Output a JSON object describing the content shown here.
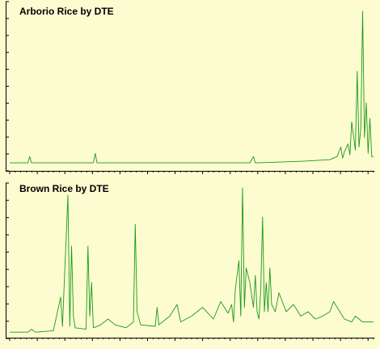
{
  "chart_data": [
    {
      "type": "line",
      "title": "Arborio Rice by DTE",
      "xlabel": "",
      "ylabel": "",
      "xlim": [
        0,
        100
      ],
      "ylim": [
        0,
        100
      ],
      "grid": false,
      "series": [
        {
          "color": "#1a9a1a",
          "x": [
            0,
            5,
            5.5,
            6,
            15,
            23,
            23.5,
            24,
            40,
            52,
            60,
            66,
            67,
            67.5,
            68,
            80,
            88,
            90,
            91,
            91.5,
            92,
            93,
            93.5,
            94,
            95,
            95.5,
            96,
            96.5,
            97,
            97.5,
            98,
            98.5,
            99,
            99.5,
            100
          ],
          "y": [
            2,
            2,
            6,
            2,
            2,
            2,
            8,
            2,
            2,
            2,
            2,
            2,
            6,
            2,
            2,
            3,
            4,
            6,
            12,
            5,
            9,
            14,
            7,
            28,
            10,
            60,
            12,
            24,
            98,
            18,
            40,
            8,
            30,
            6,
            6
          ]
        }
      ]
    },
    {
      "type": "line",
      "title": "Brown Rice by DTE",
      "xlabel": "",
      "ylabel": "",
      "xlim": [
        0,
        100
      ],
      "ylim": [
        0,
        100
      ],
      "grid": false,
      "series": [
        {
          "color": "#1a9a1a",
          "x": [
            0,
            5,
            6,
            7,
            12,
            14,
            14.5,
            15,
            16,
            16.5,
            17,
            17.5,
            18,
            21,
            21.5,
            22,
            22.5,
            23,
            25,
            27,
            29,
            32,
            34,
            34.5,
            35,
            36,
            40,
            40.5,
            41,
            44,
            46,
            47,
            50,
            53,
            56,
            58,
            60,
            61,
            61.5,
            62,
            63,
            63.5,
            64,
            64.5,
            65,
            66,
            67,
            67.5,
            68,
            68.5,
            69,
            69.5,
            70,
            70.5,
            71,
            71.5,
            72,
            73,
            74,
            76,
            78,
            80,
            82,
            84,
            86,
            88,
            89,
            90,
            92,
            94,
            95,
            97,
            100
          ],
          "y": [
            1,
            1,
            3,
            1,
            2,
            25,
            5,
            35,
            95,
            5,
            60,
            12,
            4,
            3,
            60,
            12,
            35,
            4,
            6,
            10,
            6,
            4,
            8,
            75,
            15,
            6,
            5,
            18,
            6,
            12,
            20,
            8,
            12,
            18,
            10,
            22,
            14,
            20,
            8,
            30,
            50,
            12,
            100,
            18,
            45,
            35,
            18,
            40,
            15,
            10,
            30,
            80,
            15,
            35,
            15,
            45,
            20,
            15,
            28,
            15,
            20,
            12,
            15,
            10,
            12,
            15,
            22,
            18,
            10,
            8,
            12,
            8,
            8
          ]
        }
      ]
    }
  ]
}
